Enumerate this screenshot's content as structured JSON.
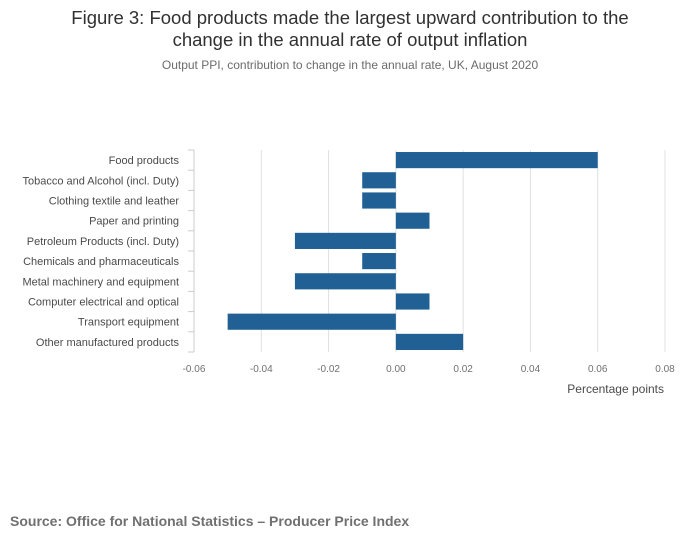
{
  "chart_data": {
    "type": "bar",
    "orientation": "horizontal",
    "title": "Figure 3: Food products made the largest upward contribution to the change in the annual rate of output inflation",
    "title_lines": [
      "Figure 3: Food products made the largest upward contribution to the",
      "change in the annual rate of output inflation"
    ],
    "subtitle": "Output PPI, contribution to change in the annual rate, UK, August 2020",
    "categories": [
      "Food products",
      "Tobacco and Alcohol (incl. Duty)",
      "Clothing textile and leather",
      "Paper and printing",
      "Petroleum Products (incl. Duty)",
      "Chemicals and pharmaceuticals",
      "Metal machinery and equipment",
      "Computer electrical and optical",
      "Transport equipment",
      "Other manufactured products"
    ],
    "values": [
      0.06,
      -0.01,
      -0.01,
      0.01,
      -0.03,
      -0.01,
      -0.03,
      0.01,
      -0.05,
      0.02
    ],
    "xlim": [
      -0.06,
      0.08
    ],
    "xticks": [
      "-0.06",
      "-0.04",
      "-0.02",
      "0.00",
      "0.02",
      "0.04",
      "0.06",
      "0.08"
    ],
    "xticks_values": [
      -0.06,
      -0.04,
      -0.02,
      0.0,
      0.02,
      0.04,
      0.06,
      0.08
    ],
    "xlabel": "Percentage points",
    "ylabel": "",
    "grid": true,
    "bar_color": "#206095"
  },
  "source": "Source: Office for National Statistics – Producer Price Index"
}
